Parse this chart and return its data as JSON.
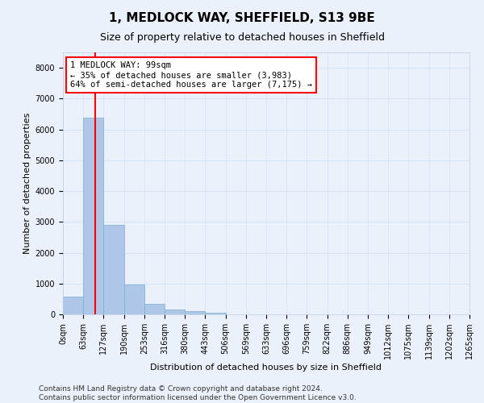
{
  "title": "1, MEDLOCK WAY, SHEFFIELD, S13 9BE",
  "subtitle": "Size of property relative to detached houses in Sheffield",
  "xlabel": "Distribution of detached houses by size in Sheffield",
  "ylabel": "Number of detached properties",
  "bar_values": [
    580,
    6380,
    2900,
    960,
    350,
    165,
    100,
    60,
    0,
    0,
    0,
    0,
    0,
    0,
    0,
    0,
    0,
    0,
    0,
    0
  ],
  "x_labels": [
    "0sqm",
    "63sqm",
    "127sqm",
    "190sqm",
    "253sqm",
    "316sqm",
    "380sqm",
    "443sqm",
    "506sqm",
    "569sqm",
    "633sqm",
    "696sqm",
    "759sqm",
    "822sqm",
    "886sqm",
    "949sqm",
    "1012sqm",
    "1075sqm",
    "1139sqm",
    "1202sqm",
    "1265sqm"
  ],
  "bar_color": "#aec6e8",
  "bar_edge_color": "#7aaed0",
  "vline_x": 1.57,
  "vline_color": "red",
  "annotation_line1": "1 MEDLOCK WAY: 99sqm",
  "annotation_line2": "← 35% of detached houses are smaller (3,983)",
  "annotation_line3": "64% of semi-detached houses are larger (7,175) →",
  "annotation_box_color": "white",
  "annotation_box_edge": "red",
  "ylim": [
    0,
    8500
  ],
  "yticks": [
    0,
    1000,
    2000,
    3000,
    4000,
    5000,
    6000,
    7000,
    8000
  ],
  "grid_color": "#d5e4f5",
  "bg_color": "#eaf1fb",
  "title_fontsize": 11,
  "subtitle_fontsize": 9,
  "axis_label_fontsize": 8,
  "tick_fontsize": 7,
  "footer_text": "Contains HM Land Registry data © Crown copyright and database right 2024.\nContains public sector information licensed under the Open Government Licence v3.0.",
  "footer_fontsize": 6.5
}
